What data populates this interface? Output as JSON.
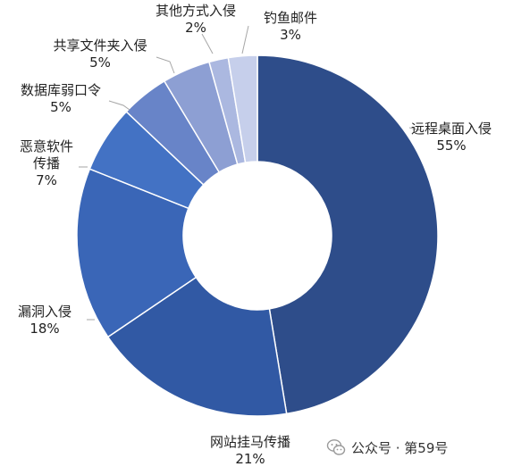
{
  "chart_data": {
    "type": "pie",
    "donut": true,
    "categories": [
      "远程桌面入侵",
      "网站挂马传播",
      "漏洞入侵",
      "恶意软件传播",
      "数据库弱口令",
      "共享文件夹入侵",
      "其他方式入侵",
      "钓鱼邮件"
    ],
    "values": [
      55,
      21,
      18,
      7,
      5,
      5,
      2,
      3
    ],
    "value_labels": [
      "55%",
      "21%",
      "18%",
      "7%",
      "5%",
      "5%",
      "2%",
      "3%"
    ],
    "label_lines": [
      [
        "远程桌面入侵"
      ],
      [
        "网站挂马传播"
      ],
      [
        "漏洞入侵"
      ],
      [
        "恶意软件",
        "传播"
      ],
      [
        "数据库弱口令"
      ],
      [
        "共享文件夹入侵"
      ],
      [
        "其他方式入侵"
      ],
      [
        "钓鱼邮件"
      ]
    ],
    "colors": [
      "#2e4d8a",
      "#3159a4",
      "#3a66b7",
      "#4372c4",
      "#6884c8",
      "#8d9fd3",
      "#abb8e0",
      "#c6cfeb"
    ]
  },
  "watermark": {
    "icon": "wechat-icon",
    "text": "公众号 · 第59号"
  }
}
